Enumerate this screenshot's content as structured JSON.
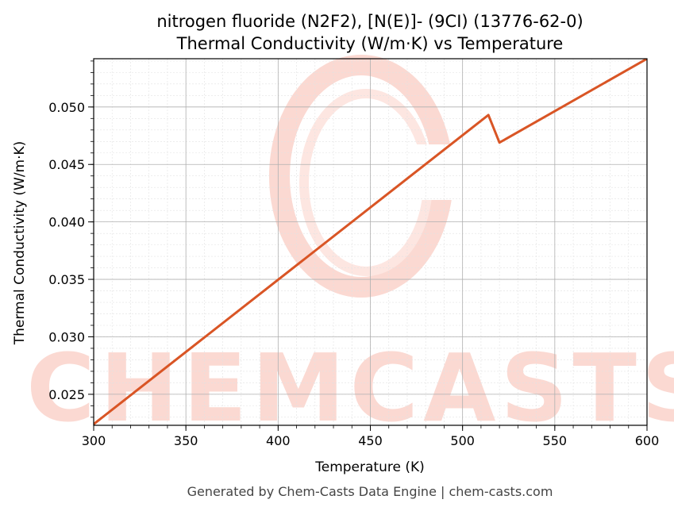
{
  "colors": {
    "line": "#d95525",
    "watermark": "#fbd9d2",
    "grid_major": "#b0b0b0",
    "grid_minor": "#e2e2e2"
  },
  "watermark": {
    "text": "CHEMCASTS"
  },
  "footer": "Generated by Chem-Casts Data Engine | chem-casts.com",
  "chart_data": {
    "type": "line",
    "title": "nitrogen fluoride (N2F2), [N(E)]- (9CI) (13776-62-0)",
    "subtitle": "Thermal Conductivity (W/m·K) vs Temperature",
    "xlabel": "Temperature (K)",
    "ylabel": "Thermal Conductivity (W/m·K)",
    "xlim": [
      300,
      600
    ],
    "ylim": [
      0.0223,
      0.0542
    ],
    "xticks": [
      300,
      350,
      400,
      450,
      500,
      550,
      600
    ],
    "yticks": [
      0.025,
      0.03,
      0.035,
      0.04,
      0.045,
      0.05
    ],
    "grid": true,
    "series": [
      {
        "x": [
          300,
          514,
          520,
          600
        ],
        "y": [
          0.0224,
          0.0493,
          0.0469,
          0.0542
        ]
      }
    ]
  }
}
